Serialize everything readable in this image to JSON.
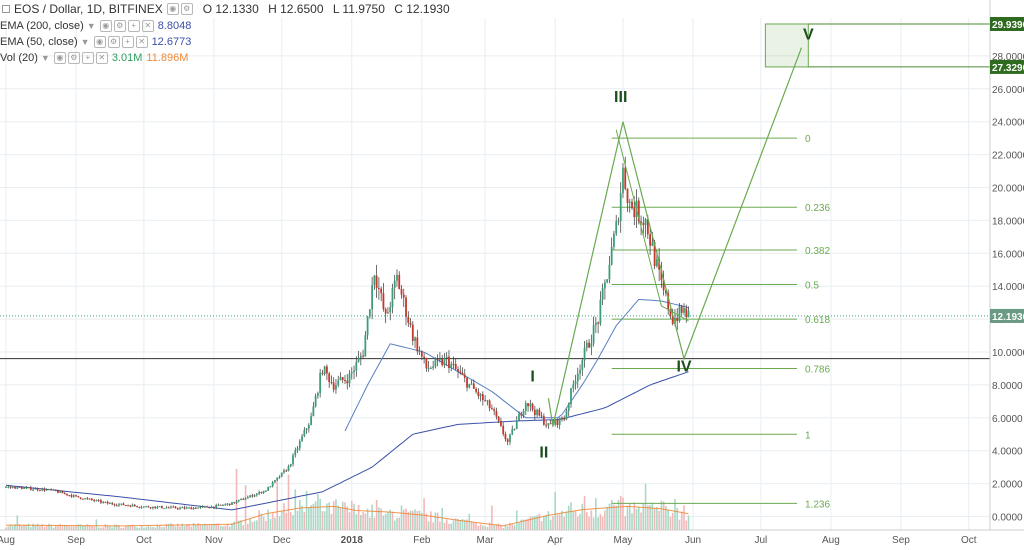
{
  "header": {
    "symbol": "EOS / Dollar, 1D, BITFINEX",
    "open": "O 12.1330",
    "high": "H 12.6500",
    "low": "L 11.9750",
    "close": "C 12.1930",
    "indicators": [
      {
        "label": "EMA (200, close)",
        "value": "8.8048",
        "value2": ""
      },
      {
        "label": "EMA (50, close)",
        "value": "12.6773",
        "value2": ""
      },
      {
        "label": "Vol (20)",
        "value": "3.01M",
        "value2": "11.896M"
      }
    ]
  },
  "colors": {
    "up": "#3c9e78",
    "down": "#c0392b",
    "wick": "#333333",
    "ema50": "#5a7fc0",
    "ema200": "#3a4fa8",
    "vol_ma": "#f08a3a",
    "vol_up": "#a8d8c6",
    "vol_down": "#f2b8b8",
    "annotation": "#6aaa4f",
    "wave_label": "#1d4d1d",
    "grid": "#e8eef2"
  },
  "chart_data": {
    "type": "candlestick",
    "y_ticks": [
      "0.0000",
      "2.0000",
      "4.0000",
      "6.0000",
      "8.0000",
      "10.0000",
      "12.0000",
      "14.0000",
      "16.0000",
      "18.0000",
      "20.0000",
      "22.0000",
      "24.0000",
      "26.0000",
      "28.0000"
    ],
    "ylim": [
      -1,
      30.5
    ],
    "x_months": [
      "Aug",
      "Sep",
      "Oct",
      "Nov",
      "Dec",
      "2018",
      "Feb",
      "Mar",
      "Apr",
      "May",
      "Jun",
      "Jul",
      "Aug",
      "Sep",
      "Oct"
    ],
    "x_month_index": [
      0,
      31,
      61,
      92,
      122,
      153,
      184,
      212,
      243,
      273,
      304,
      334,
      365,
      396,
      426
    ],
    "x_last_index": 302,
    "last_price": 12.193,
    "price_labels": [
      "29.9390",
      "27.3290",
      "12.1930"
    ],
    "price_anchors": [
      [
        0,
        1.8
      ],
      [
        20,
        1.6
      ],
      [
        31,
        1.2
      ],
      [
        45,
        0.8
      ],
      [
        61,
        0.6
      ],
      [
        80,
        0.5
      ],
      [
        92,
        0.6
      ],
      [
        100,
        0.8
      ],
      [
        115,
        1.6
      ],
      [
        125,
        3.0
      ],
      [
        135,
        6.0
      ],
      [
        140,
        9.0
      ],
      [
        145,
        8.0
      ],
      [
        152,
        8.5
      ],
      [
        158,
        10.0
      ],
      [
        163,
        15.0
      ],
      [
        168,
        12.0
      ],
      [
        173,
        14.5
      ],
      [
        180,
        11.0
      ],
      [
        186,
        9.0
      ],
      [
        195,
        9.5
      ],
      [
        205,
        8.0
      ],
      [
        215,
        6.5
      ],
      [
        222,
        4.5
      ],
      [
        230,
        7.0
      ],
      [
        240,
        5.5
      ],
      [
        247,
        6.0
      ],
      [
        252,
        8.5
      ],
      [
        262,
        12.0
      ],
      [
        270,
        17.5
      ],
      [
        273,
        21.0
      ],
      [
        276,
        19.0
      ],
      [
        283,
        18.0
      ],
      [
        290,
        14.0
      ],
      [
        295,
        12.0
      ],
      [
        300,
        12.5
      ],
      [
        302,
        12.2
      ]
    ],
    "ema50_anchors": [
      [
        150,
        5.2
      ],
      [
        160,
        8.0
      ],
      [
        170,
        10.5
      ],
      [
        185,
        10.0
      ],
      [
        200,
        8.8
      ],
      [
        215,
        7.6
      ],
      [
        230,
        6.0
      ],
      [
        245,
        6.0
      ],
      [
        255,
        8.0
      ],
      [
        262,
        9.6
      ],
      [
        270,
        11.6
      ],
      [
        280,
        13.2
      ],
      [
        290,
        13.1
      ],
      [
        302,
        12.7
      ]
    ],
    "ema200_anchors": [
      [
        0,
        1.9
      ],
      [
        50,
        1.2
      ],
      [
        100,
        0.4
      ],
      [
        140,
        1.5
      ],
      [
        162,
        3.0
      ],
      [
        180,
        5.0
      ],
      [
        200,
        5.6
      ],
      [
        225,
        5.8
      ],
      [
        245,
        5.9
      ],
      [
        265,
        6.6
      ],
      [
        285,
        8.0
      ],
      [
        302,
        8.8
      ]
    ],
    "vol_ma_anchors": [
      [
        0,
        0.6
      ],
      [
        50,
        0.5
      ],
      [
        100,
        0.7
      ],
      [
        115,
        2.0
      ],
      [
        130,
        2.7
      ],
      [
        145,
        2.9
      ],
      [
        155,
        2.4
      ],
      [
        170,
        2.2
      ],
      [
        185,
        1.8
      ],
      [
        200,
        1.2
      ],
      [
        220,
        0.5
      ],
      [
        240,
        1.8
      ],
      [
        255,
        2.5
      ],
      [
        265,
        2.7
      ],
      [
        275,
        2.9
      ],
      [
        290,
        2.6
      ],
      [
        302,
        2.0
      ]
    ],
    "volume_spikes": [
      [
        5,
        1.8
      ],
      [
        40,
        1.3
      ],
      [
        102,
        7.5
      ],
      [
        106,
        5.5
      ],
      [
        120,
        6.4
      ],
      [
        125,
        6.8
      ],
      [
        128,
        5.0
      ],
      [
        133,
        4.8
      ],
      [
        138,
        4.4
      ],
      [
        143,
        3.4
      ],
      [
        147,
        3.0
      ],
      [
        153,
        3.6
      ],
      [
        158,
        2.2
      ],
      [
        164,
        3.7
      ],
      [
        168,
        2.0
      ],
      [
        175,
        3.0
      ],
      [
        185,
        3.9
      ],
      [
        193,
        2.7
      ],
      [
        205,
        2.0
      ],
      [
        215,
        3.0
      ],
      [
        226,
        2.4
      ],
      [
        236,
        2.0
      ],
      [
        243,
        4.7
      ],
      [
        250,
        3.4
      ],
      [
        256,
        4.2
      ],
      [
        261,
        3.9
      ],
      [
        268,
        3.7
      ],
      [
        272,
        4.2
      ],
      [
        275,
        3.0
      ],
      [
        279,
        2.6
      ],
      [
        283,
        5.7
      ],
      [
        290,
        3.6
      ],
      [
        296,
        3.8
      ],
      [
        300,
        3.0
      ]
    ],
    "fib_levels": [
      {
        "label": "0",
        "price": 23.0
      },
      {
        "label": "0.236",
        "price": 18.8
      },
      {
        "label": "0.382",
        "price": 16.2
      },
      {
        "label": "0.5",
        "price": 14.1
      },
      {
        "label": "0.618",
        "price": 12.0
      },
      {
        "label": "0.786",
        "price": 9.0
      },
      {
        "label": "1",
        "price": 5.0
      },
      {
        "label": "1.236",
        "price": 0.8
      }
    ],
    "fib_x_range": [
      268,
      350
    ],
    "horizontal_line": 9.6,
    "target_box": {
      "x0": 336,
      "x1": 355,
      "y0": 27.33,
      "y1": 29.94
    },
    "waves": [
      {
        "label": "I",
        "x": 240,
        "price": 7.2
      },
      {
        "label": "II",
        "x": 242,
        "price": 5.5
      },
      {
        "label": "III",
        "x": 273,
        "price": 24.0
      },
      {
        "label": "IV",
        "x": 300,
        "price": 9.6
      },
      {
        "label": "V",
        "x": 352,
        "price": 28.5
      }
    ],
    "wave_labels": [
      {
        "text": "I",
        "x": 233,
        "price": 8.2
      },
      {
        "text": "II",
        "x": 238,
        "price": 3.6
      },
      {
        "text": "III",
        "x": 272,
        "price": 25.2
      },
      {
        "text": "IV",
        "x": 300,
        "price": 8.8
      },
      {
        "text": "V",
        "x": 355,
        "price": 29.0
      }
    ],
    "triangle_hint": [
      [
        270,
        23.5
      ],
      [
        290,
        12.8
      ],
      [
        302,
        11.9
      ]
    ]
  }
}
